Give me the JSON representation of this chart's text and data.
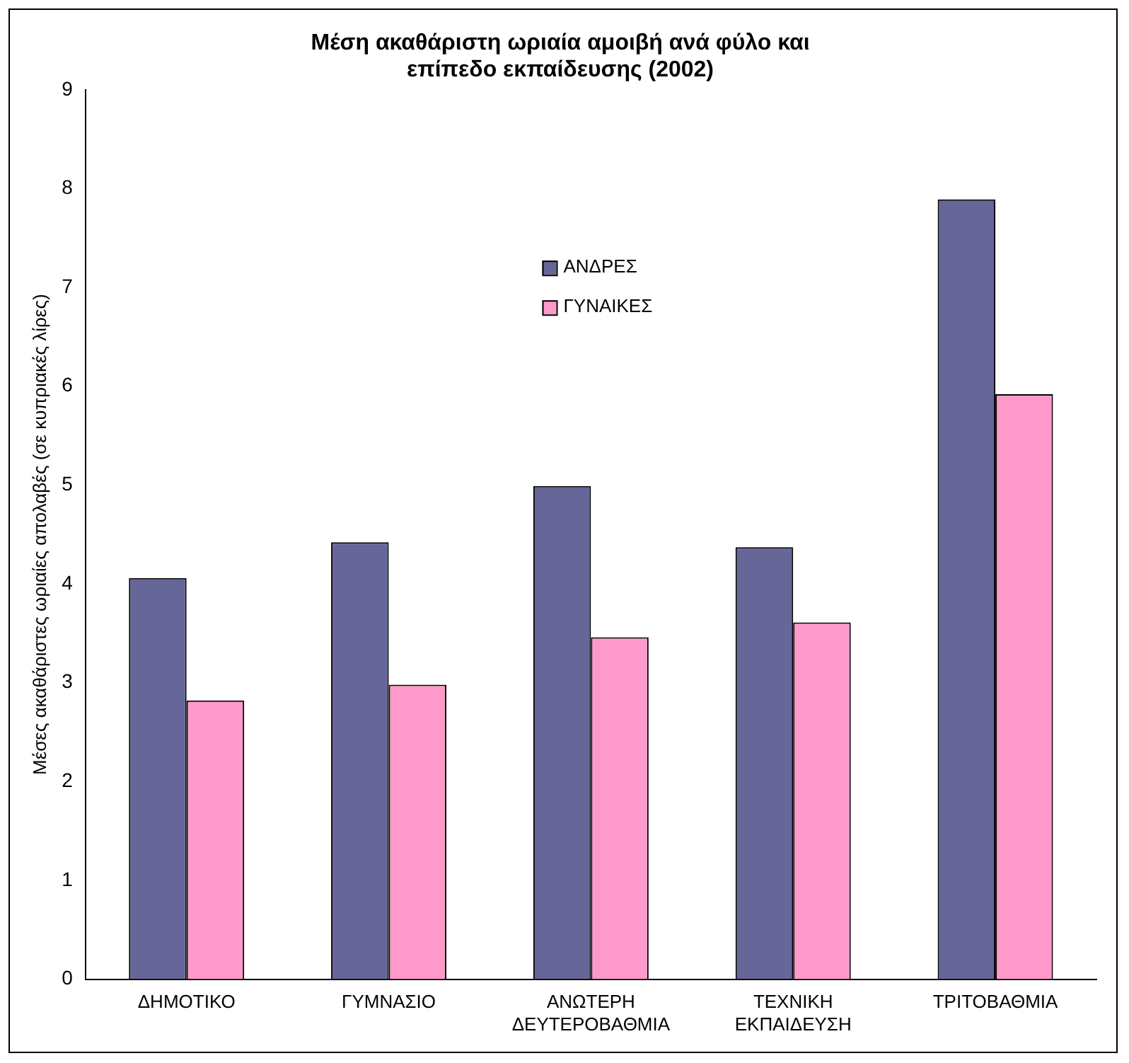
{
  "chart_data": {
    "type": "bar",
    "title": "Μέση ακαθάριστη ωριαία αμοιβή ανά φύλο και επίπεδο εκπαίδευσης (2002)",
    "ylabel": "Μέσες ακαθάριστες ωριαίες απολαβές (σε κυπριακές λίρες)",
    "categories": [
      "ΔΗΜΟΤΙΚΟ",
      "ΓΥΜΝΑΣΙΟ",
      "ΑΝΩΤΕΡΗ ΔΕΥΤΕΡΟΒΑΘΜΙΑ",
      "ΤΕΧΝΙΚΗ ΕΚΠΑΙΔΕΥΣΗ",
      "ΤΡΙΤΟΒΑΘΜΙΑ"
    ],
    "series": [
      {
        "name": "ΑΝΔΡΕΣ",
        "color": "#666699",
        "values": [
          4.06,
          4.42,
          4.99,
          4.37,
          7.89
        ]
      },
      {
        "name": "ΓΥΝΑΙΚΕΣ",
        "color": "#ff99cc",
        "values": [
          2.82,
          2.98,
          3.46,
          3.61,
          5.92
        ]
      }
    ],
    "ylim": [
      0,
      9
    ],
    "yticks": [
      0,
      1,
      2,
      3,
      4,
      5,
      6,
      7,
      8,
      9
    ],
    "grid": false,
    "legend": "top"
  }
}
